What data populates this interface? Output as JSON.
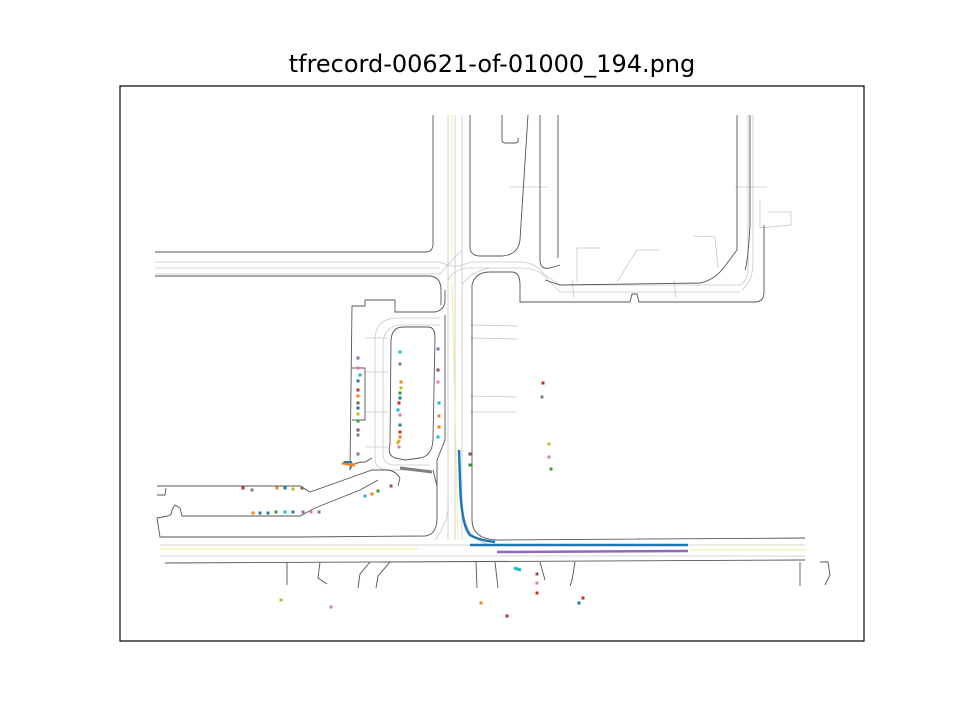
{
  "figure": {
    "title": "tfrecord-00621-of-01000_194.png"
  },
  "colors": {
    "road_edge": "#555555",
    "lane": "#c8c8c8",
    "center_line": "#f2f08a",
    "frame": "#000000",
    "traj_blue": "#1f77b4",
    "traj_purple": "#9467bd",
    "traj_cyan": "#17becf",
    "traj_orange": "#ff7f0e",
    "traj_gray": "#7f7f7f"
  },
  "agent_palette": [
    "#1f77b4",
    "#ff7f0e",
    "#2ca02c",
    "#d62728",
    "#9467bd",
    "#8c564b",
    "#e377c2",
    "#7f7f7f",
    "#bcbd22",
    "#17becf"
  ]
}
